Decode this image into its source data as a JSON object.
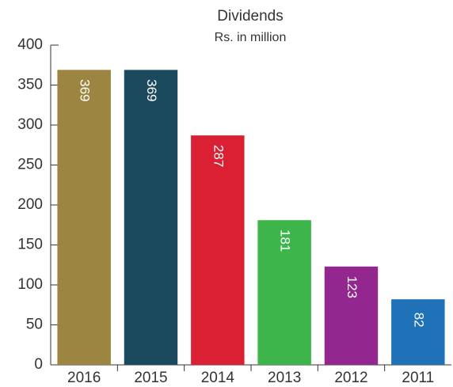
{
  "chart_data": {
    "type": "bar",
    "title": "Dividends",
    "subtitle": "Rs. in million",
    "categories": [
      "2016",
      "2015",
      "2014",
      "2013",
      "2012",
      "2011"
    ],
    "values": [
      369,
      369,
      287,
      181,
      123,
      82
    ],
    "colors": [
      "#9b8540",
      "#1b4a5e",
      "#dc2034",
      "#3db54a",
      "#93278f",
      "#1f72b8"
    ],
    "ylim": [
      0,
      400
    ],
    "yticks": [
      0,
      50,
      100,
      150,
      200,
      250,
      300,
      350,
      400
    ],
    "grid": false
  }
}
